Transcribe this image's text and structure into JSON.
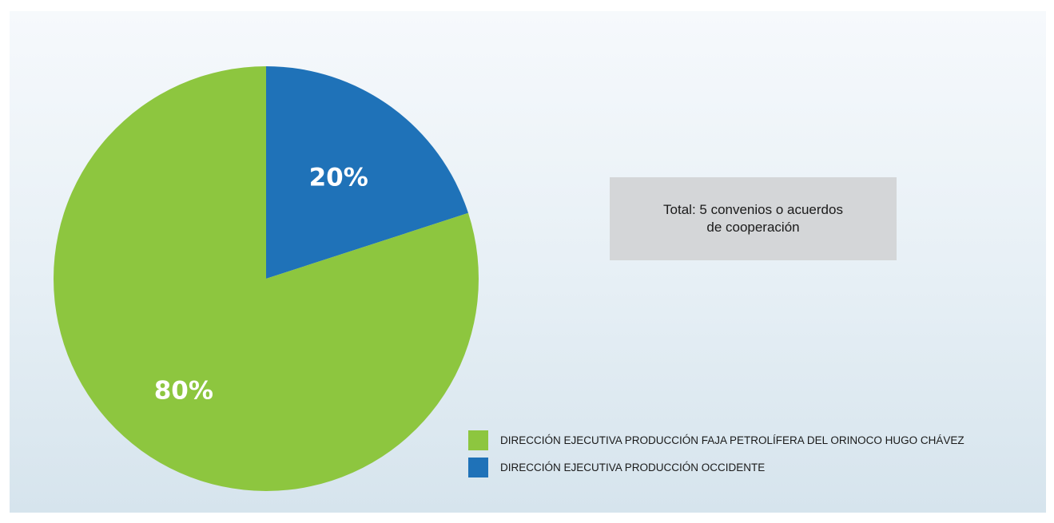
{
  "chart_data": {
    "type": "pie",
    "slices": [
      {
        "name": "DIRECCIÓN EJECUTIVA PRODUCCIÓN FAJA PETROLÍFERA DEL ORINOCO HUGO CHÁVEZ",
        "value": 80,
        "label": "80%",
        "color": "#8dc63f"
      },
      {
        "name": "DIRECCIÓN EJECUTIVA PRODUCCIÓN OCCIDENTE",
        "value": 20,
        "label": "20%",
        "color": "#1f72b8"
      }
    ],
    "annotation": {
      "line1": "Total: 5 convenios o acuerdos",
      "line2": "de cooperación"
    },
    "legend_placement": "bottom-right"
  }
}
